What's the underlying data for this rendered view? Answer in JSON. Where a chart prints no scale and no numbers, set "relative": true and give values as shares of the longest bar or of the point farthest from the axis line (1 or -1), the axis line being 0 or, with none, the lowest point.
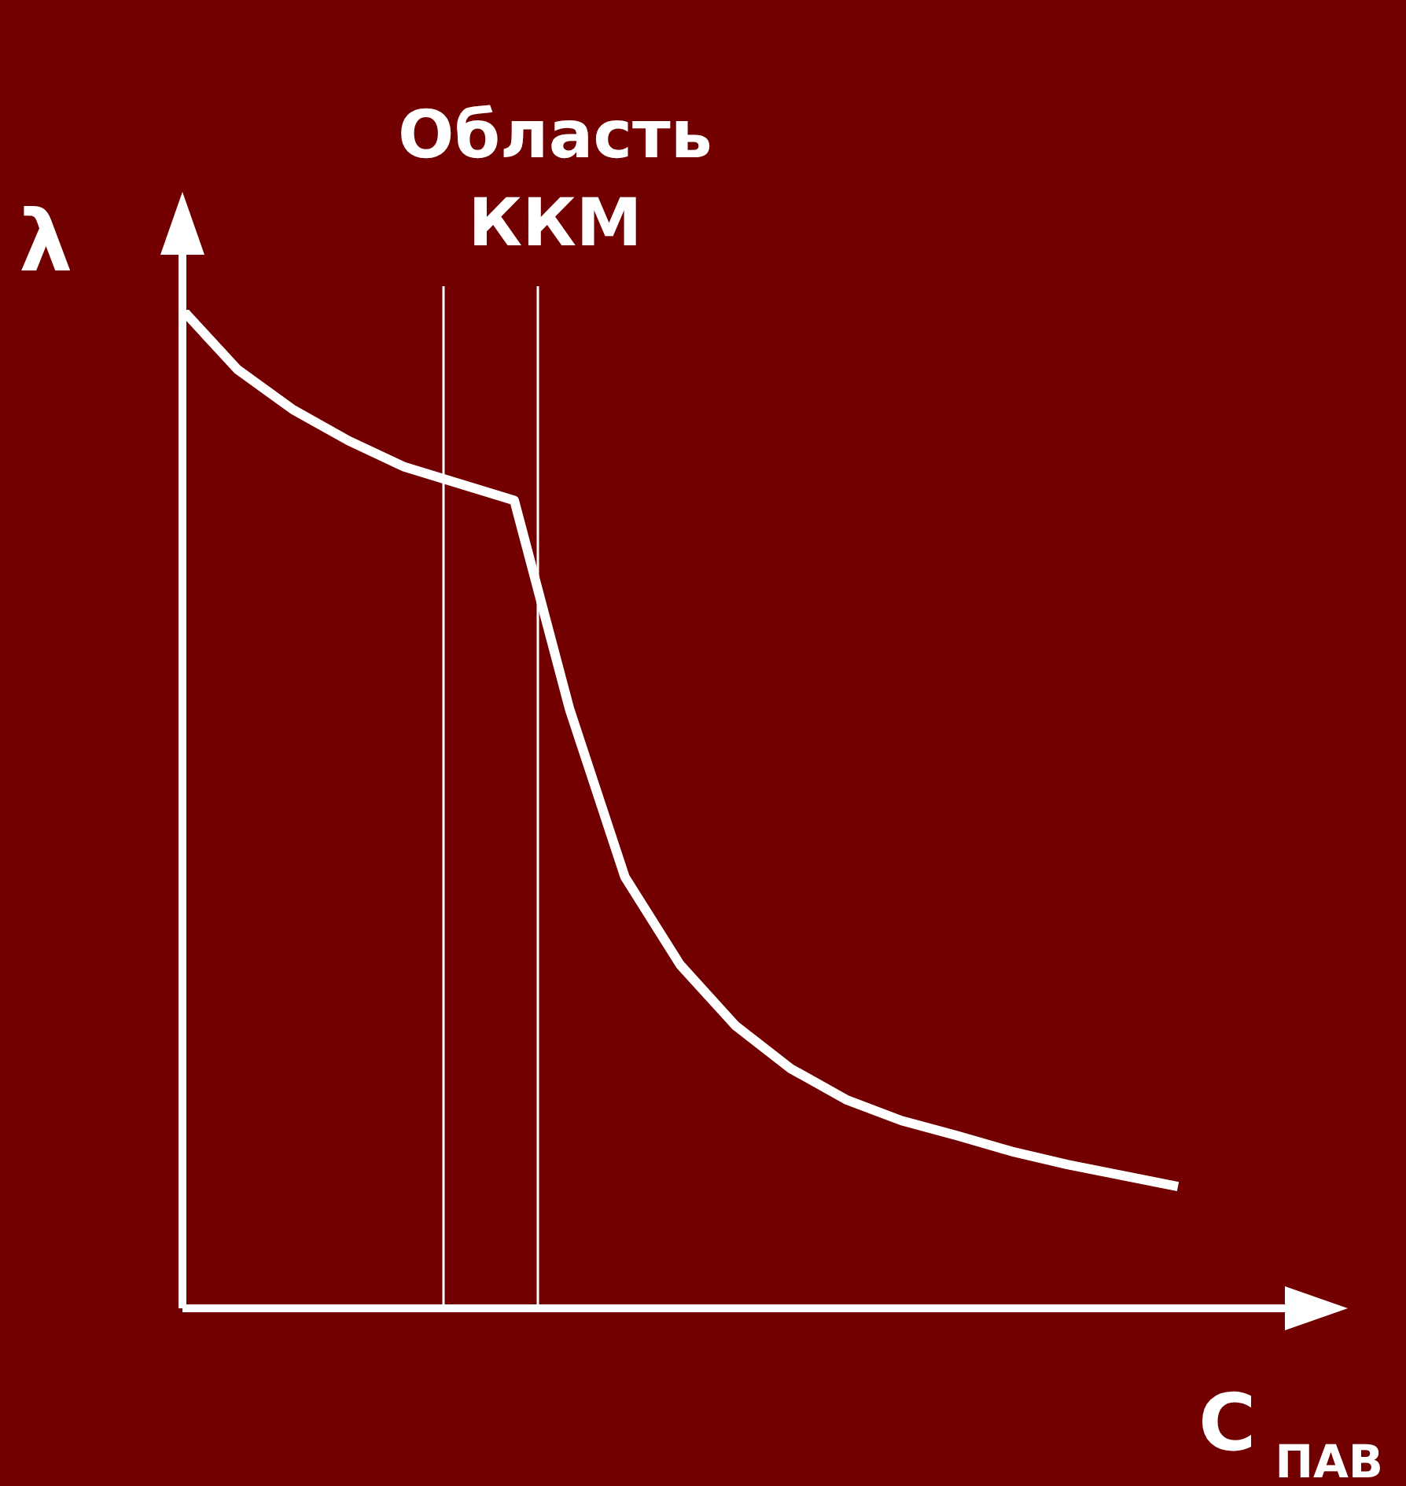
{
  "chart_data": {
    "type": "line",
    "relative": true,
    "line_style": "solid",
    "categories": [
      null,
      null,
      null,
      null,
      null,
      null,
      null,
      null,
      null,
      null,
      null,
      null,
      null,
      null,
      null,
      null,
      null,
      null,
      null
    ],
    "series": [
      {
        "color": "#ffffff",
        "values": [
          1,
          0.94,
          0.9,
          0.869,
          0.843,
          0.826,
          0.809,
          0.6,
          0.432,
          0.344,
          0.283,
          0.24,
          0.209,
          0.188,
          0.173,
          0.157,
          0.144,
          0.133,
          0.122
        ]
      }
    ],
    "annotations": [
      "Область ККМ",
      "λ",
      "C$_{ПАВ}$"
    ]
  }
}
